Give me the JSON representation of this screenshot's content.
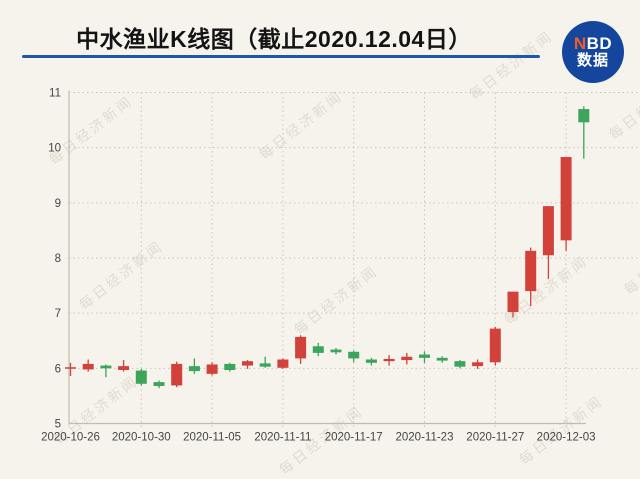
{
  "header": {
    "title": "中水渔业K线图（截止2020.12.04日）",
    "logo": {
      "nbd_accent": "N",
      "nbd_rest": "BD",
      "line2": "数据",
      "bg_color": "#15469e",
      "accent_color": "#f25c2a"
    },
    "rule_color": "#1f57a8"
  },
  "watermark": {
    "text": "每日经济新闻",
    "color": "#d6cfc1"
  },
  "chart_data": {
    "type": "candlestick",
    "title": "中水渔业K线图（截止2020.12.04日）",
    "xlabel": "",
    "ylabel": "",
    "ylim": [
      5,
      11
    ],
    "y_ticks": [
      5,
      6,
      7,
      8,
      9,
      10,
      11
    ],
    "x_tick_indices": [
      0,
      4,
      8,
      12,
      16,
      20,
      24,
      28
    ],
    "x_tick_labels": [
      "2020-10-26",
      "2020-10-30",
      "2020-11-05",
      "2020-11-11",
      "2020-11-17",
      "2020-11-23",
      "2020-11-27",
      "2020-12-03"
    ],
    "grid": "dotted",
    "up_color": "#d2413a",
    "down_color": "#3da45b",
    "axis_color": "#c2bcb0",
    "grid_color": "#ccc5b9",
    "tick_text_color": "#454545",
    "candles": [
      {
        "date": "2020-10-26",
        "open": 6.0,
        "high": 6.1,
        "low": 5.86,
        "close": 6.02
      },
      {
        "date": "2020-10-27",
        "open": 5.98,
        "high": 6.16,
        "low": 5.94,
        "close": 6.08
      },
      {
        "date": "2020-10-28",
        "open": 6.05,
        "high": 6.07,
        "low": 5.84,
        "close": 6.0
      },
      {
        "date": "2020-10-29",
        "open": 5.97,
        "high": 6.15,
        "low": 5.94,
        "close": 6.04
      },
      {
        "date": "2020-10-30",
        "open": 5.96,
        "high": 5.99,
        "low": 5.69,
        "close": 5.72
      },
      {
        "date": "2020-11-02",
        "open": 5.75,
        "high": 5.78,
        "low": 5.64,
        "close": 5.68
      },
      {
        "date": "2020-11-03",
        "open": 5.69,
        "high": 6.12,
        "low": 5.66,
        "close": 6.08
      },
      {
        "date": "2020-11-04",
        "open": 6.04,
        "high": 6.18,
        "low": 5.9,
        "close": 5.95
      },
      {
        "date": "2020-11-05",
        "open": 5.9,
        "high": 6.11,
        "low": 5.87,
        "close": 6.07
      },
      {
        "date": "2020-11-06",
        "open": 6.08,
        "high": 6.1,
        "low": 5.94,
        "close": 5.97
      },
      {
        "date": "2020-11-09",
        "open": 6.05,
        "high": 6.15,
        "low": 5.99,
        "close": 6.13
      },
      {
        "date": "2020-11-10",
        "open": 6.09,
        "high": 6.21,
        "low": 6.01,
        "close": 6.03
      },
      {
        "date": "2020-11-11",
        "open": 6.01,
        "high": 6.18,
        "low": 5.99,
        "close": 6.16
      },
      {
        "date": "2020-11-12",
        "open": 6.18,
        "high": 6.6,
        "low": 6.08,
        "close": 6.57
      },
      {
        "date": "2020-11-13",
        "open": 6.4,
        "high": 6.46,
        "low": 6.22,
        "close": 6.28
      },
      {
        "date": "2020-11-16",
        "open": 6.34,
        "high": 6.37,
        "low": 6.25,
        "close": 6.29
      },
      {
        "date": "2020-11-17",
        "open": 6.3,
        "high": 6.32,
        "low": 6.11,
        "close": 6.18
      },
      {
        "date": "2020-11-18",
        "open": 6.16,
        "high": 6.19,
        "low": 6.05,
        "close": 6.1
      },
      {
        "date": "2020-11-19",
        "open": 6.13,
        "high": 6.24,
        "low": 6.05,
        "close": 6.17
      },
      {
        "date": "2020-11-20",
        "open": 6.15,
        "high": 6.28,
        "low": 6.07,
        "close": 6.21
      },
      {
        "date": "2020-11-23",
        "open": 6.25,
        "high": 6.31,
        "low": 6.1,
        "close": 6.19
      },
      {
        "date": "2020-11-24",
        "open": 6.19,
        "high": 6.22,
        "low": 6.1,
        "close": 6.14
      },
      {
        "date": "2020-11-25",
        "open": 6.13,
        "high": 6.15,
        "low": 6.0,
        "close": 6.03
      },
      {
        "date": "2020-11-26",
        "open": 6.04,
        "high": 6.16,
        "low": 5.99,
        "close": 6.11
      },
      {
        "date": "2020-11-27",
        "open": 6.11,
        "high": 6.75,
        "low": 6.05,
        "close": 6.72
      },
      {
        "date": "2020-11-30",
        "open": 7.02,
        "high": 7.39,
        "low": 6.92,
        "close": 7.39
      },
      {
        "date": "2020-12-01",
        "open": 7.4,
        "high": 8.19,
        "low": 7.13,
        "close": 8.13
      },
      {
        "date": "2020-12-02",
        "open": 8.05,
        "high": 8.94,
        "low": 7.62,
        "close": 8.94
      },
      {
        "date": "2020-12-03",
        "open": 8.32,
        "high": 9.83,
        "low": 8.13,
        "close": 9.83
      },
      {
        "date": "2020-12-04",
        "open": 10.7,
        "high": 10.75,
        "low": 9.8,
        "close": 10.46
      }
    ]
  }
}
